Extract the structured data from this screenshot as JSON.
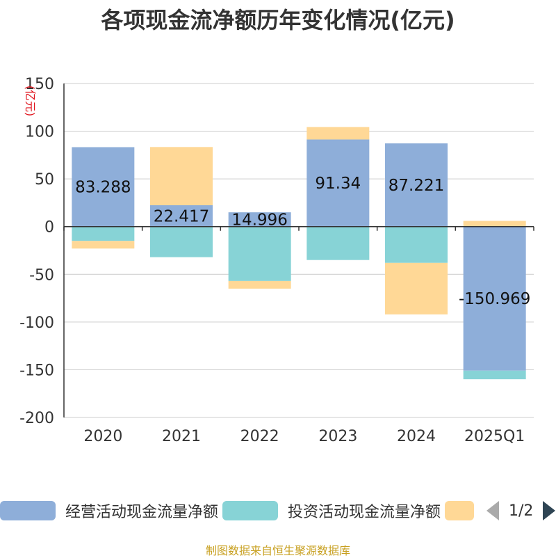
{
  "title": "各项现金流净额历年变化情况(亿元)",
  "source": "制图数据来自恒生聚源数据库",
  "legend": {
    "items": [
      {
        "label": "经营活动现金流量净额",
        "color": "#8eaed9"
      },
      {
        "label": "投资活动现金流量净额",
        "color": "#87d3d6"
      },
      {
        "label": "",
        "color": "#ffd896"
      }
    ],
    "page": "1/2"
  },
  "chart_data": {
    "type": "bar",
    "stacked": true,
    "categories": [
      "2020",
      "2021",
      "2022",
      "2023",
      "2024",
      "2025Q1"
    ],
    "ylabel": "(亿元)",
    "ylim": [
      -200,
      150
    ],
    "yticks": [
      150,
      100,
      50,
      0,
      -50,
      -100,
      -150,
      -200
    ],
    "grid": true,
    "legend_position": "bottom",
    "series": [
      {
        "name": "经营活动现金流量净额",
        "color": "#8eaed9",
        "values": [
          83.288,
          22.417,
          14.996,
          91.34,
          87.221,
          -150.969
        ],
        "labels": [
          "83.288",
          "22.417",
          "14.996",
          "91.34",
          "87.221",
          "-150.969"
        ]
      },
      {
        "name": "投资活动现金流量净额",
        "color": "#87d3d6",
        "values": [
          -15,
          -32,
          -57,
          -35,
          -38,
          -9
        ]
      },
      {
        "color": "#ffd896",
        "values": [
          -8,
          61,
          -8,
          13,
          -54,
          6
        ]
      }
    ]
  }
}
